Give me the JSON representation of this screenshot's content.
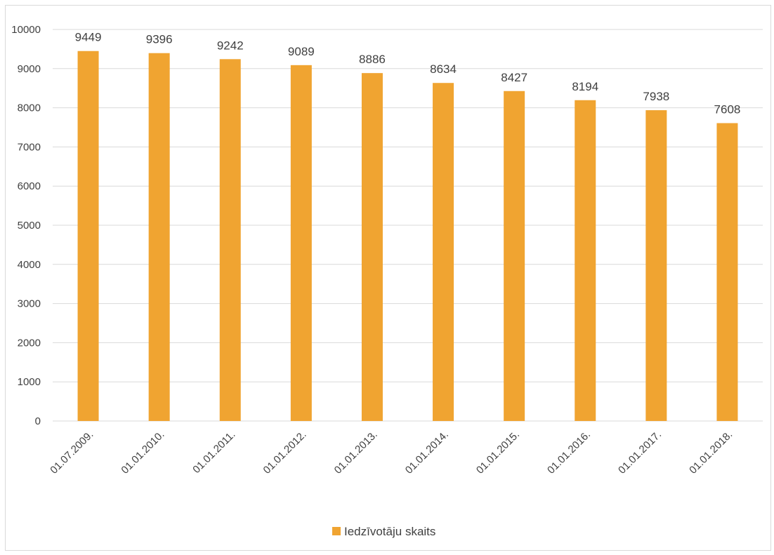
{
  "chart_data": {
    "type": "bar",
    "categories": [
      "01.07.2009.",
      "01.01.2010.",
      "01.01.2011.",
      "01.01.2012.",
      "01.01.2013.",
      "01.01.2014.",
      "01.01.2015.",
      "01.01.2016.",
      "01.01.2017.",
      "01.01.2018."
    ],
    "series": [
      {
        "name": "Iedzīvotāju skaits",
        "values": [
          9449,
          9396,
          9242,
          9089,
          8886,
          8634,
          8427,
          8194,
          7938,
          7608
        ],
        "color": "#f0a431"
      }
    ],
    "title": "",
    "xlabel": "",
    "ylabel": "",
    "ylim": [
      0,
      10000
    ],
    "yticks": [
      "0",
      "1000",
      "2000",
      "3000",
      "4000",
      "5000",
      "6000",
      "7000",
      "8000",
      "9000",
      "10000"
    ],
    "grid": true,
    "legend_position": "bottom",
    "data_labels": true
  },
  "colors": {
    "bar": "#f0a431",
    "grid": "#d9d9d9",
    "text": "#404040"
  }
}
